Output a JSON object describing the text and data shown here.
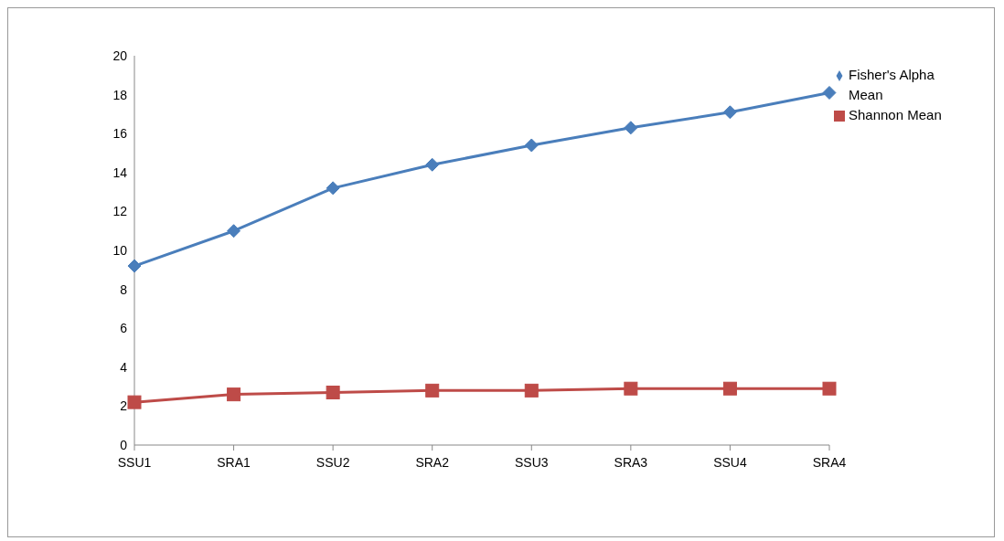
{
  "chart_data": {
    "type": "line",
    "categories": [
      "SSU1",
      "SRA1",
      "SSU2",
      "SRA2",
      "SSU3",
      "SRA3",
      "SSU4",
      "SRA4"
    ],
    "series": [
      {
        "name": "Fisher's Alpha Mean",
        "color": "#4a7ebb",
        "marker": "diamond",
        "values": [
          9.2,
          11.0,
          13.2,
          14.4,
          15.4,
          16.3,
          17.1,
          18.1
        ]
      },
      {
        "name": "Shannon Mean",
        "color": "#be4b48",
        "marker": "square",
        "values": [
          2.2,
          2.6,
          2.7,
          2.8,
          2.8,
          2.9,
          2.9,
          2.9
        ]
      }
    ],
    "ylim": [
      0,
      20
    ],
    "yticks": [
      0,
      2,
      4,
      6,
      8,
      10,
      12,
      14,
      16,
      18,
      20
    ],
    "grid": false,
    "legend": "top right",
    "line_style": "solid"
  }
}
